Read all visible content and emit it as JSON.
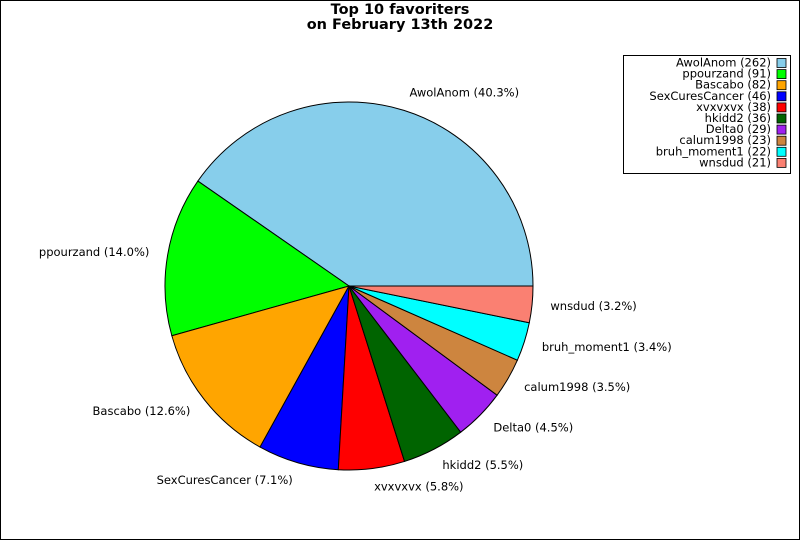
{
  "chart_data": {
    "type": "pie",
    "title": [
      "Top 10 favoriters",
      "on February 13th 2022"
    ],
    "categories": [
      "AwolAnom (262)",
      "ppourzand (91)",
      "Bascabo (82)",
      "SexCuresCancer (46)",
      "xvxvxvx (38)",
      "hkidd2 (36)",
      "Delta0 (29)",
      "calum1998 (23)",
      "bruh_moment1 (22)",
      "wnsdud (21)"
    ],
    "values": [
      40.3,
      14.0,
      12.6,
      7.1,
      5.8,
      5.5,
      4.5,
      3.5,
      3.4,
      3.2
    ],
    "value_labels": [
      "AwolAnom (40.3%)",
      "ppourzand (14.0%)",
      "Bascabo (12.6%)",
      "SexCuresCancer (7.1%)",
      "xvxvxvx (5.8%)",
      "hkidd2 (5.5%)",
      "Delta0 (4.5%)",
      "calum1998 (3.5%)",
      "bruh_moment1 (3.4%)",
      "wnsdud (3.2%)"
    ],
    "colors": [
      "#87ceeb",
      "#00ff00",
      "#ffa500",
      "#0000ff",
      "#ff0000",
      "#006400",
      "#a020f0",
      "#cd853f",
      "#00ffff",
      "#fa8072"
    ],
    "legend": "upper right"
  }
}
